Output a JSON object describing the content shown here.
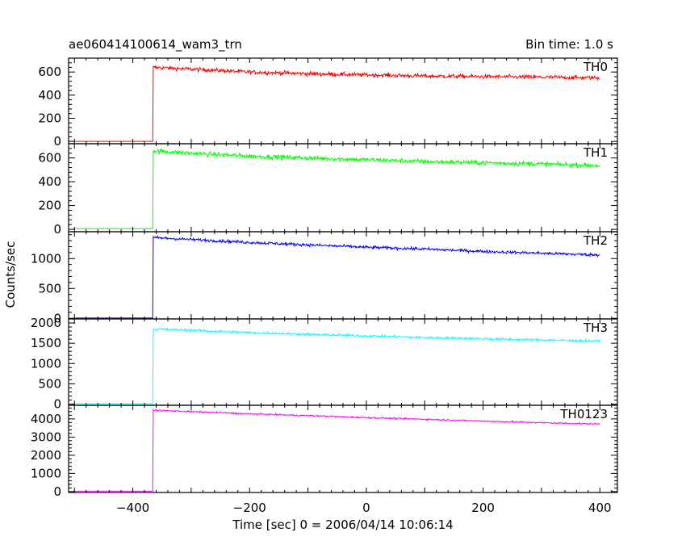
{
  "header": {
    "left_title": "ae060414100614_wam3_trn",
    "right_title": "Bin time: 1.0 s"
  },
  "chart_data": {
    "type": "line",
    "x_axis": {
      "label": "Time [sec] 0 = 2006/04/14 10:06:14",
      "range": [
        -510,
        430
      ],
      "ticks": [
        -400,
        -200,
        0,
        200,
        400
      ],
      "tick_labels": [
        "−400",
        "−200",
        "0",
        "200",
        "400"
      ]
    },
    "y_label": "Counts/sec",
    "grid": false,
    "bin_time_s": 1.0,
    "panels": [
      {
        "series": "TH0",
        "label": "TH0",
        "color": "#ff0000",
        "ylim": [
          -20,
          720
        ],
        "ticks": [
          0,
          200,
          400,
          600
        ],
        "tick_labels": [
          "0",
          "200",
          "400",
          "600"
        ],
        "pre_burst_level": 0,
        "onset_time": -365,
        "key_points": [
          [
            -500,
            0
          ],
          [
            -366,
            0
          ],
          [
            -365,
            640
          ],
          [
            -300,
            625
          ],
          [
            -200,
            600
          ],
          [
            -100,
            585
          ],
          [
            0,
            575
          ],
          [
            100,
            565
          ],
          [
            200,
            560
          ],
          [
            300,
            555
          ],
          [
            400,
            550
          ]
        ],
        "noise_amplitude": 25
      },
      {
        "series": "TH1",
        "label": "TH1",
        "color": "#00ff00",
        "ylim": [
          -20,
          720
        ],
        "ticks": [
          0,
          200,
          400,
          600
        ],
        "tick_labels": [
          "0",
          "200",
          "400",
          "600"
        ],
        "pre_burst_level": 5,
        "onset_time": -365,
        "key_points": [
          [
            -500,
            5
          ],
          [
            -366,
            5
          ],
          [
            -365,
            660
          ],
          [
            -300,
            640
          ],
          [
            -200,
            615
          ],
          [
            -100,
            600
          ],
          [
            0,
            585
          ],
          [
            100,
            570
          ],
          [
            200,
            560
          ],
          [
            300,
            550
          ],
          [
            400,
            535
          ]
        ],
        "noise_amplitude": 28
      },
      {
        "series": "TH2",
        "label": "TH2",
        "color": "#0000ff",
        "ylim": [
          -10,
          1450
        ],
        "ticks": [
          0,
          500,
          1000
        ],
        "tick_labels": [
          "0",
          "500",
          "1000"
        ],
        "pre_burst_level": 5,
        "onset_time": -365,
        "key_points": [
          [
            -500,
            5
          ],
          [
            -366,
            5
          ],
          [
            -365,
            1350
          ],
          [
            -300,
            1320
          ],
          [
            -200,
            1270
          ],
          [
            -100,
            1230
          ],
          [
            0,
            1190
          ],
          [
            100,
            1160
          ],
          [
            200,
            1120
          ],
          [
            300,
            1090
          ],
          [
            400,
            1060
          ]
        ],
        "noise_amplitude": 35
      },
      {
        "series": "TH3",
        "label": "TH3",
        "color": "#00ffff",
        "ylim": [
          -30,
          2100
        ],
        "ticks": [
          0,
          500,
          1000,
          1500,
          2000
        ],
        "tick_labels": [
          "0",
          "500",
          "1000",
          "1500",
          "2000"
        ],
        "pre_burst_level": 10,
        "onset_time": -365,
        "key_points": [
          [
            -500,
            10
          ],
          [
            -366,
            10
          ],
          [
            -365,
            1850
          ],
          [
            -300,
            1820
          ],
          [
            -200,
            1760
          ],
          [
            -100,
            1720
          ],
          [
            0,
            1680
          ],
          [
            100,
            1640
          ],
          [
            200,
            1610
          ],
          [
            300,
            1580
          ],
          [
            400,
            1550
          ]
        ],
        "noise_amplitude": 45
      },
      {
        "series": "TH0123",
        "label": "TH0123",
        "color": "#ff00ff",
        "ylim": [
          -50,
          4750
        ],
        "ticks": [
          0,
          1000,
          2000,
          3000,
          4000
        ],
        "tick_labels": [
          "0",
          "1000",
          "2000",
          "3000",
          "4000"
        ],
        "pre_burst_level": 20,
        "onset_time": -365,
        "key_points": [
          [
            -500,
            20
          ],
          [
            -366,
            20
          ],
          [
            -365,
            4480
          ],
          [
            -300,
            4400
          ],
          [
            -200,
            4280
          ],
          [
            -100,
            4180
          ],
          [
            0,
            4070
          ],
          [
            100,
            3980
          ],
          [
            200,
            3880
          ],
          [
            300,
            3790
          ],
          [
            400,
            3720
          ]
        ],
        "noise_amplitude": 60
      }
    ]
  }
}
